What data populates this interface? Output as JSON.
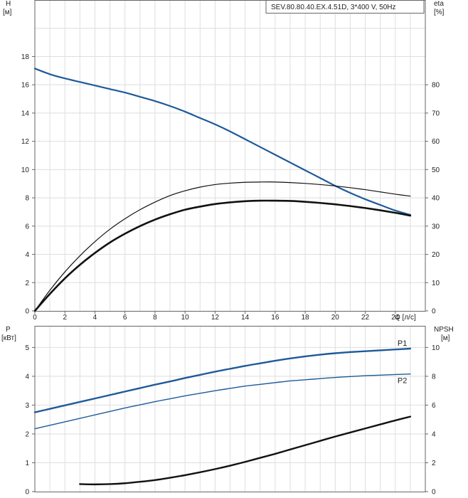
{
  "chart_data": [
    {
      "type": "line",
      "title": "SEV.80.80.40.EX.4.51D, 3*400 V, 50Hz",
      "xlabel": "Q [л/с]",
      "xlim": [
        0,
        26
      ],
      "x_ticks": [
        0,
        2,
        4,
        6,
        8,
        10,
        12,
        14,
        16,
        18,
        20,
        22,
        24
      ],
      "ylabel_left": [
        "H",
        "[м]"
      ],
      "ylim_left": [
        0,
        22
      ],
      "y_ticks_left": [
        0,
        2,
        4,
        6,
        8,
        10,
        12,
        14,
        16,
        18
      ],
      "ylabel_right": [
        "eta",
        "[%]"
      ],
      "ylim_right": [
        0,
        110
      ],
      "y_ticks_right": [
        0,
        10,
        20,
        30,
        40,
        50,
        60,
        70,
        80
      ],
      "grid": true,
      "series": [
        {
          "axis": "left",
          "color": "#1f5a99",
          "x": [
            0,
            1,
            2,
            3,
            4,
            5,
            6,
            7,
            8,
            9,
            10,
            11,
            12,
            13,
            14,
            15,
            16,
            17,
            18,
            19,
            20,
            21,
            22,
            23,
            24,
            25
          ],
          "values": [
            17.15,
            16.75,
            16.45,
            16.2,
            15.95,
            15.7,
            15.45,
            15.15,
            14.85,
            14.5,
            14.1,
            13.65,
            13.2,
            12.7,
            12.15,
            11.6,
            11.05,
            10.5,
            9.95,
            9.4,
            8.85,
            8.35,
            7.9,
            7.5,
            7.1,
            6.8
          ]
        },
        {
          "axis": "right",
          "color": "#111111",
          "x": [
            0,
            1,
            2,
            3,
            4,
            5,
            6,
            7,
            8,
            9,
            10,
            11,
            12,
            13,
            14,
            15,
            16,
            17,
            18,
            19,
            20,
            21,
            22,
            23,
            24,
            25
          ],
          "values": [
            0,
            6,
            11.5,
            16.3,
            20.5,
            24.2,
            27.3,
            30,
            32.3,
            34.2,
            35.8,
            36.9,
            37.8,
            38.4,
            38.8,
            39.0,
            39.0,
            38.9,
            38.6,
            38.2,
            37.7,
            37.1,
            36.4,
            35.6,
            34.7,
            33.7
          ]
        },
        {
          "axis": "right",
          "color": "#111111",
          "x": [
            0,
            1,
            2,
            3,
            4,
            5,
            6,
            7,
            8,
            9,
            10,
            11,
            12,
            13,
            14,
            15,
            16,
            17,
            18,
            19,
            20,
            21,
            22,
            23,
            24,
            25
          ],
          "values": [
            0,
            7.3,
            13.8,
            19.5,
            24.5,
            28.9,
            32.6,
            35.8,
            38.5,
            40.8,
            42.5,
            43.8,
            44.7,
            45.2,
            45.5,
            45.6,
            45.6,
            45.4,
            45.1,
            44.7,
            44.2,
            43.6,
            42.9,
            42.1,
            41.3,
            40.6
          ]
        }
      ]
    },
    {
      "type": "line",
      "xlim": [
        0,
        26
      ],
      "x_ticks": [
        0,
        2,
        4,
        6,
        8,
        10,
        12,
        14,
        16,
        18,
        20,
        22,
        24
      ],
      "ylabel_left": [
        "P",
        "[кВт]"
      ],
      "ylim_left": [
        0,
        5.75
      ],
      "y_ticks_left": [
        0,
        1,
        2,
        3,
        4,
        5
      ],
      "ylabel_right": [
        "NPSH",
        "[м]"
      ],
      "ylim_right": [
        0,
        11.5
      ],
      "y_ticks_right": [
        0,
        2,
        4,
        6,
        8,
        10
      ],
      "grid": true,
      "series": [
        {
          "name": "P1",
          "axis": "left",
          "color": "#1f5a99",
          "x": [
            0,
            1,
            2,
            3,
            4,
            5,
            6,
            7,
            8,
            9,
            10,
            11,
            12,
            13,
            14,
            15,
            16,
            17,
            18,
            19,
            20,
            21,
            22,
            23,
            24,
            25
          ],
          "values": [
            2.75,
            2.87,
            2.99,
            3.11,
            3.23,
            3.35,
            3.47,
            3.59,
            3.71,
            3.82,
            3.94,
            4.05,
            4.16,
            4.26,
            4.36,
            4.45,
            4.54,
            4.62,
            4.69,
            4.75,
            4.8,
            4.84,
            4.87,
            4.9,
            4.93,
            4.96
          ]
        },
        {
          "name": "P2",
          "axis": "left",
          "color": "#1f5a99",
          "x": [
            0,
            1,
            2,
            3,
            4,
            5,
            6,
            7,
            8,
            9,
            10,
            11,
            12,
            13,
            14,
            15,
            16,
            17,
            18,
            19,
            20,
            21,
            22,
            23,
            24,
            25
          ],
          "values": [
            2.18,
            2.3,
            2.42,
            2.54,
            2.66,
            2.78,
            2.9,
            3.01,
            3.12,
            3.22,
            3.32,
            3.41,
            3.5,
            3.58,
            3.66,
            3.72,
            3.78,
            3.84,
            3.88,
            3.92,
            3.96,
            3.99,
            4.02,
            4.04,
            4.06,
            4.08
          ]
        },
        {
          "axis": "right",
          "color": "#111111",
          "x": [
            3,
            4,
            5,
            6,
            7,
            8,
            9,
            10,
            11,
            12,
            13,
            14,
            15,
            16,
            17,
            18,
            19,
            20,
            21,
            22,
            23,
            24,
            25
          ],
          "values": [
            0.52,
            0.5,
            0.52,
            0.58,
            0.68,
            0.8,
            0.96,
            1.14,
            1.34,
            1.56,
            1.8,
            2.06,
            2.34,
            2.62,
            2.92,
            3.22,
            3.52,
            3.82,
            4.1,
            4.38,
            4.66,
            4.94,
            5.2
          ]
        }
      ]
    }
  ]
}
